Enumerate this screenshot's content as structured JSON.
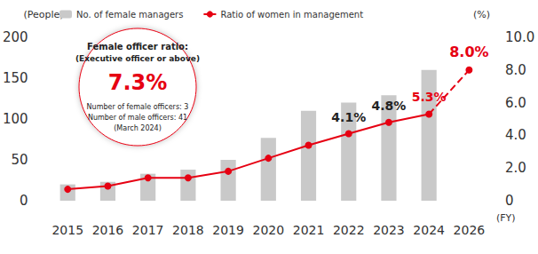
{
  "chart_data": {
    "type": "bar",
    "categories": [
      "2015",
      "2016",
      "2017",
      "2018",
      "2019",
      "2020",
      "2021",
      "2022",
      "2023",
      "2024",
      "2026"
    ],
    "series": [
      {
        "name": "No. of female managers",
        "type": "bar",
        "color": "#c9c9c9",
        "values": [
          20,
          23,
          33,
          38,
          50,
          77,
          110,
          120,
          129,
          160,
          null
        ]
      },
      {
        "name": "Ratio of women in management",
        "type": "line",
        "axis": "y2",
        "color": "#e60012",
        "marker": "circle",
        "line_style": "solid",
        "values": [
          0.7,
          0.9,
          1.4,
          1.4,
          1.8,
          2.6,
          3.4,
          4.1,
          4.8,
          5.3,
          8.0
        ],
        "value_labels": [
          null,
          null,
          null,
          null,
          null,
          null,
          null,
          "4.1%",
          "4.8%",
          "5.3%",
          "8.0%"
        ]
      }
    ],
    "ylabel": "(People)",
    "y2label": "(%)",
    "xlabel": "(FY)",
    "ylim": [
      0,
      200
    ],
    "yticks": [
      0,
      50,
      100,
      150,
      200
    ],
    "y2lim": [
      0,
      10
    ],
    "y2ticks": [
      0,
      {
        "value": 2,
        "label": "2.0"
      },
      {
        "value": 4,
        "label": "4.0"
      },
      {
        "value": 6,
        "label": "6.0"
      },
      {
        "value": 8,
        "label": "8.0"
      },
      {
        "value": 10,
        "label": "10.0"
      }
    ],
    "grid": false,
    "legend": "top",
    "data_labels": true,
    "annotation": {
      "title": "Female officer ratio:",
      "subtitle": "(Executive officer or above)",
      "value": "7.3%",
      "lines": [
        "Number of female officers: 3",
        "Number of male officers: 41",
        "(March 2024)"
      ]
    }
  }
}
